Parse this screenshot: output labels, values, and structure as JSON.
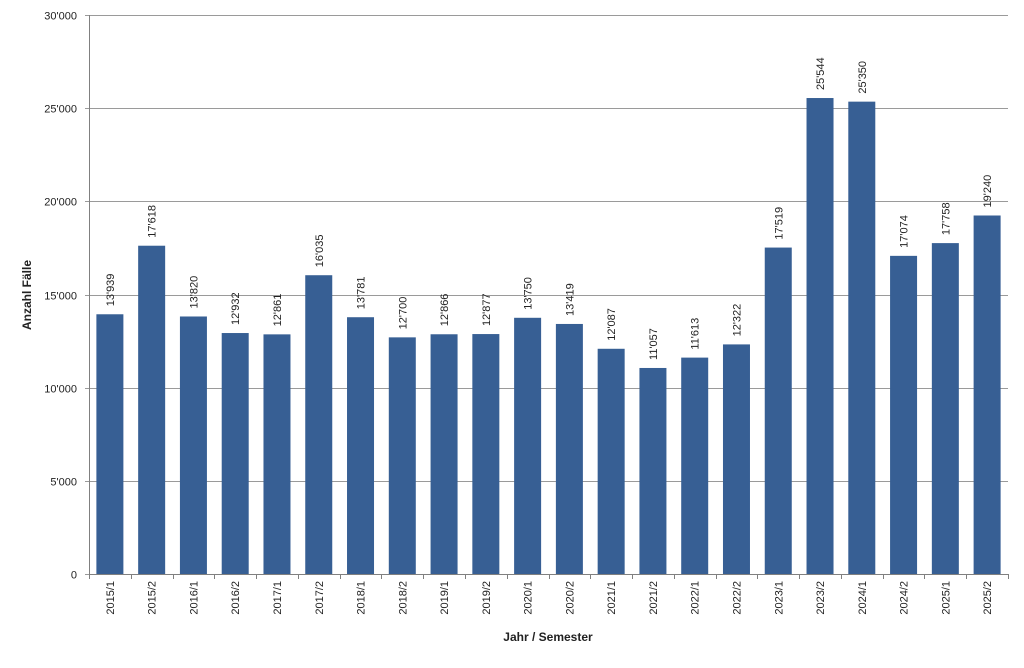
{
  "chart_data": {
    "type": "bar",
    "title": "",
    "xlabel": "Jahr / Semester",
    "ylabel": "Anzahl Fälle",
    "ylim": [
      0,
      30000
    ],
    "yticks": [
      0,
      5000,
      10000,
      15000,
      20000,
      25000,
      30000
    ],
    "ytick_labels": [
      "0",
      "5'000",
      "10'000",
      "15'000",
      "20'000",
      "25'000",
      "30'000"
    ],
    "grid": true,
    "legend": "none",
    "bar_color": "#375F94",
    "gridline_color": "#9A9A9A",
    "categories": [
      "2015/1",
      "2015/2",
      "2016/1",
      "2016/2",
      "2017/1",
      "2017/2",
      "2018/1",
      "2018/2",
      "2019/1",
      "2019/2",
      "2020/1",
      "2020/2",
      "2021/1",
      "2021/2",
      "2022/1",
      "2022/2",
      "2023/1",
      "2023/2",
      "2024/1",
      "2024/2",
      "2025/1",
      "2025/2"
    ],
    "values": [
      13939,
      17618,
      13820,
      12932,
      12861,
      16035,
      13781,
      12700,
      12866,
      12877,
      13750,
      13419,
      12087,
      11057,
      11613,
      12322,
      17519,
      25544,
      25350,
      17074,
      17758,
      19240
    ],
    "value_labels": [
      "13'939",
      "17'618",
      "13'820",
      "12'932",
      "12'861",
      "16'035",
      "13'781",
      "12'700",
      "12'866",
      "12'877",
      "13'750",
      "13'419",
      "12'087",
      "11'057",
      "11'613",
      "12'322",
      "17'519",
      "25'544",
      "25'350",
      "17'074",
      "17'758",
      "19'240"
    ]
  }
}
